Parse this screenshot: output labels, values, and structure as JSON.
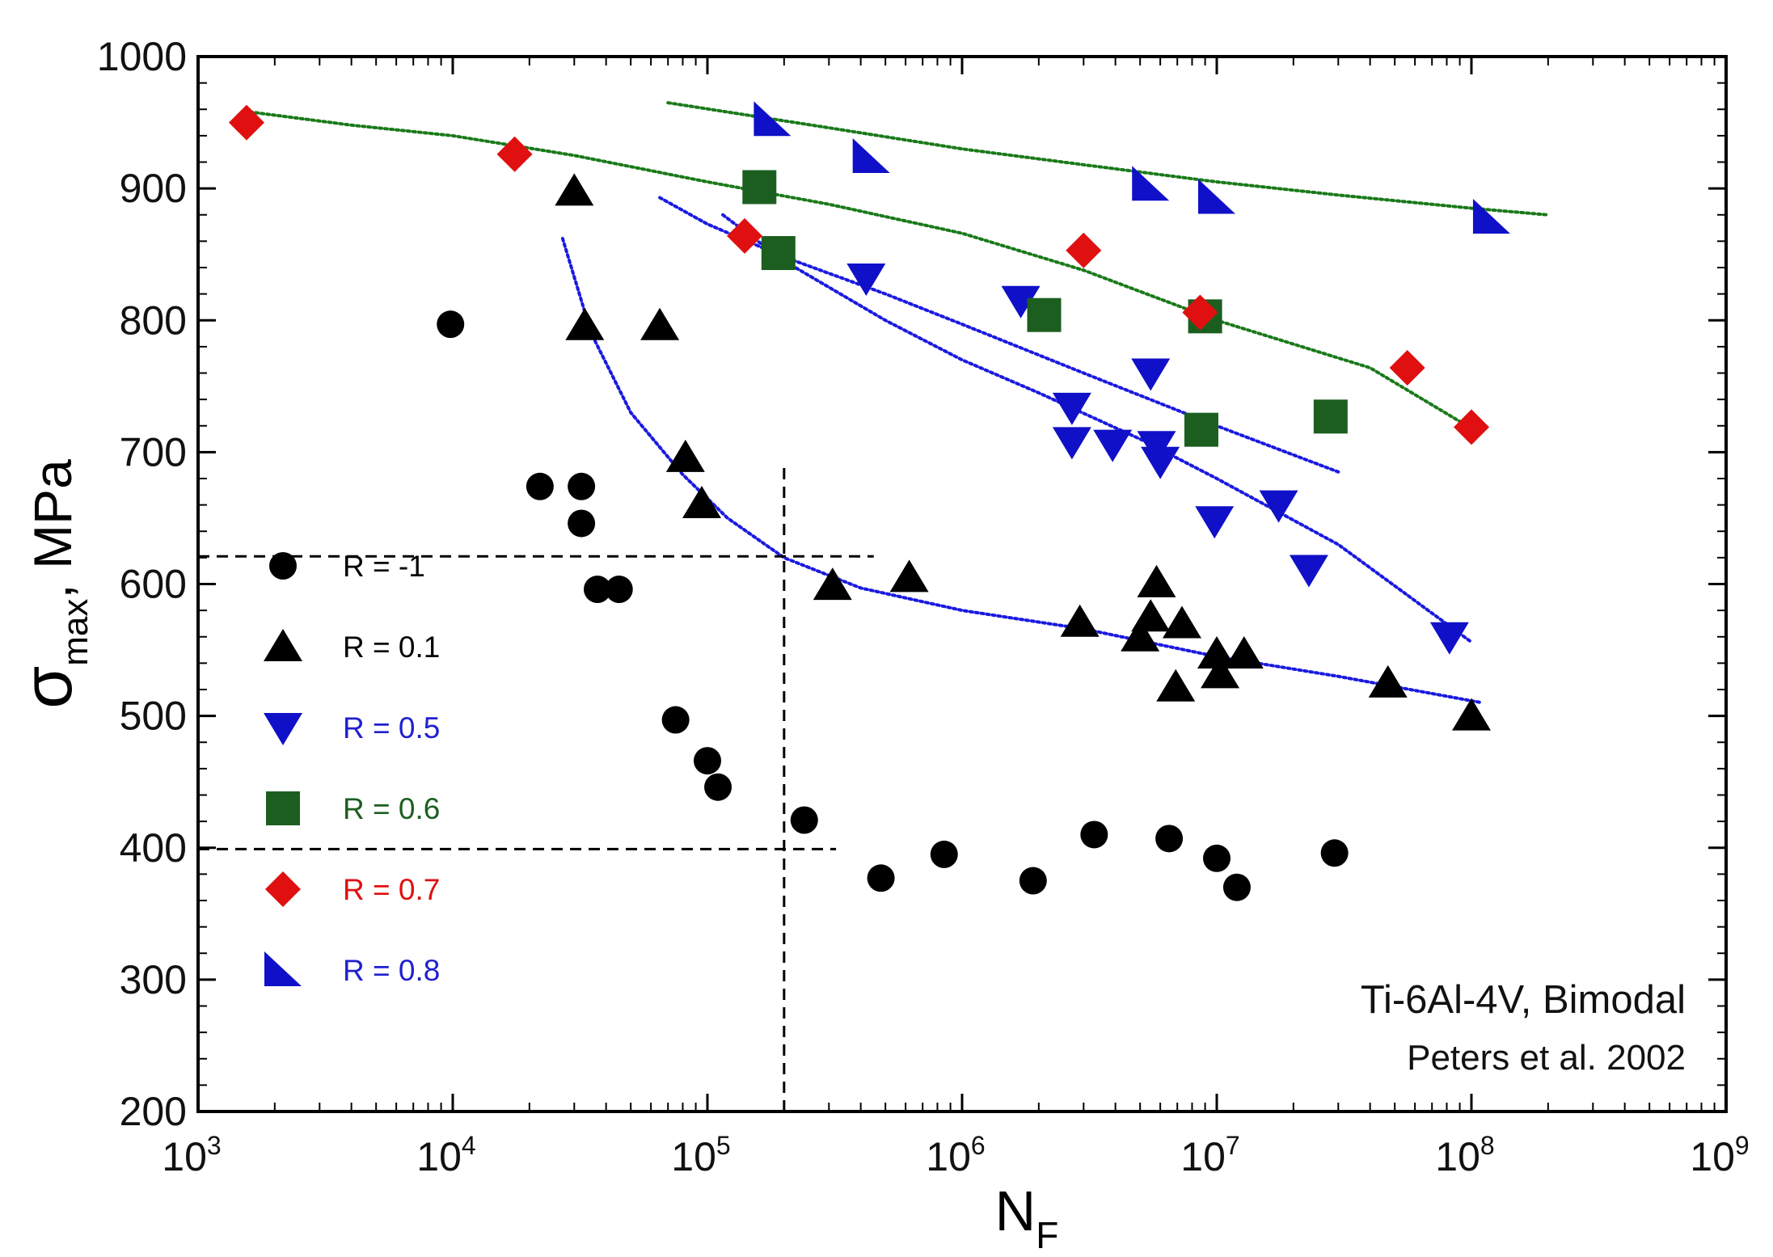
{
  "chart_data": {
    "type": "scatter",
    "x_scale": "log",
    "xlim": [
      1000,
      1000000000
    ],
    "ylim": [
      200,
      1000
    ],
    "xlabel": {
      "base": "N",
      "subscript": "F"
    },
    "ylabel": {
      "symbol": "σ",
      "subscript": "max",
      "suffix": ", MPa"
    },
    "x_ticks": [
      {
        "value": 1000,
        "base": "10",
        "exp": "3"
      },
      {
        "value": 10000,
        "base": "10",
        "exp": "4"
      },
      {
        "value": 100000,
        "base": "10",
        "exp": "5"
      },
      {
        "value": 1000000,
        "base": "10",
        "exp": "6"
      },
      {
        "value": 10000000,
        "base": "10",
        "exp": "7"
      },
      {
        "value": 100000000,
        "base": "10",
        "exp": "8"
      },
      {
        "value": 1000000000,
        "base": "10",
        "exp": "9"
      }
    ],
    "y_ticks": [
      {
        "value": 200,
        "label": "200"
      },
      {
        "value": 300,
        "label": "300"
      },
      {
        "value": 400,
        "label": "400"
      },
      {
        "value": 500,
        "label": "500"
      },
      {
        "value": 600,
        "label": "600"
      },
      {
        "value": 700,
        "label": "700"
      },
      {
        "value": 800,
        "label": "800"
      },
      {
        "value": 900,
        "label": "900"
      },
      {
        "value": 1000,
        "label": "1000"
      }
    ],
    "series": [
      {
        "name": "R = -1",
        "marker": "circle",
        "color": "#000000",
        "label_color": "#000000",
        "points": [
          [
            9800,
            797
          ],
          [
            22000,
            674
          ],
          [
            32000,
            674
          ],
          [
            32000,
            646
          ],
          [
            37000,
            596
          ],
          [
            45000,
            596
          ],
          [
            75000,
            497
          ],
          [
            100000,
            466
          ],
          [
            110000,
            446
          ],
          [
            240000,
            421
          ],
          [
            480000,
            377
          ],
          [
            850000,
            395
          ],
          [
            1900000,
            375
          ],
          [
            3300000,
            410
          ],
          [
            6500000,
            407
          ],
          [
            10000000,
            392
          ],
          [
            12000000,
            370
          ],
          [
            29000000,
            396
          ]
        ]
      },
      {
        "name": "R = 0.1",
        "marker": "triangle-up",
        "color": "#000000",
        "label_color": "#000000",
        "points": [
          [
            30000,
            898
          ],
          [
            33000,
            796
          ],
          [
            65000,
            796
          ],
          [
            82000,
            696
          ],
          [
            95000,
            661
          ],
          [
            310000,
            599
          ],
          [
            620000,
            605
          ],
          [
            2900000,
            571
          ],
          [
            5000000,
            560
          ],
          [
            5500000,
            575
          ],
          [
            5800000,
            601
          ],
          [
            7300000,
            570
          ],
          [
            6900000,
            522
          ],
          [
            10000000,
            547
          ],
          [
            10300000,
            532
          ],
          [
            12800000,
            547
          ],
          [
            47000000,
            525
          ],
          [
            100000000,
            500
          ]
        ]
      },
      {
        "name": "R = 0.5",
        "marker": "triangle-down",
        "color": "#1010c8",
        "label_color": "#2020d0",
        "points": [
          [
            420000,
            832
          ],
          [
            1700000,
            815
          ],
          [
            2700000,
            734
          ],
          [
            2700000,
            708
          ],
          [
            3900000,
            706
          ],
          [
            5500000,
            760
          ],
          [
            5800000,
            705
          ],
          [
            6000000,
            693
          ],
          [
            9800000,
            648
          ],
          [
            17500000,
            660
          ],
          [
            23000000,
            611
          ],
          [
            82000000,
            560
          ]
        ]
      },
      {
        "name": "R = 0.6",
        "marker": "square",
        "color": "#1c5e20",
        "label_color": "#1c5e20",
        "points": [
          [
            160000,
            901
          ],
          [
            190000,
            851
          ],
          [
            2100000,
            804
          ],
          [
            9000000,
            803
          ],
          [
            8700000,
            717
          ],
          [
            28000000,
            727
          ]
        ]
      },
      {
        "name": "R = 0.7",
        "marker": "diamond",
        "color": "#e01010",
        "label_color": "#e01010",
        "points": [
          [
            1550,
            950
          ],
          [
            17500,
            926
          ],
          [
            140000,
            864
          ],
          [
            3000000,
            853
          ],
          [
            8600000,
            806
          ],
          [
            56000000,
            764
          ],
          [
            100000000,
            719
          ]
        ]
      },
      {
        "name": "R = 0.8",
        "marker": "right-triangle",
        "color": "#1010c8",
        "label_color": "#2020d0",
        "points": [
          [
            180000,
            952
          ],
          [
            440000,
            924
          ],
          [
            5500000,
            903
          ],
          [
            10000000,
            893
          ],
          [
            120000000,
            878
          ]
        ]
      }
    ],
    "fit_lines": [
      {
        "color": "#1a7a1a",
        "points": [
          [
            1600,
            958
          ],
          [
            4000,
            948
          ],
          [
            10000,
            940
          ],
          [
            30000,
            925
          ],
          [
            100000,
            905
          ],
          [
            300000,
            888
          ],
          [
            1000000,
            866
          ],
          [
            3000000,
            838
          ],
          [
            10000000,
            800
          ],
          [
            40000000,
            764
          ],
          [
            100000000,
            718
          ]
        ]
      },
      {
        "color": "#1a7a1a",
        "points": [
          [
            70000,
            965
          ],
          [
            300000,
            946
          ],
          [
            1000000,
            930
          ],
          [
            3000000,
            918
          ],
          [
            10000000,
            905
          ],
          [
            30000000,
            895
          ],
          [
            100000000,
            885
          ],
          [
            200000000,
            880
          ]
        ]
      },
      {
        "color": "#1a1ae0",
        "points": [
          [
            65000,
            893
          ],
          [
            100000,
            873
          ],
          [
            200000,
            848
          ],
          [
            500000,
            820
          ],
          [
            1000000,
            797
          ],
          [
            3000000,
            760
          ],
          [
            10000000,
            720
          ],
          [
            30000000,
            685
          ]
        ]
      },
      {
        "color": "#1a1ae0",
        "points": [
          [
            115000,
            880
          ],
          [
            200000,
            845
          ],
          [
            500000,
            800
          ],
          [
            1000000,
            770
          ],
          [
            2000000,
            745
          ],
          [
            5000000,
            710
          ],
          [
            10000000,
            680
          ],
          [
            30000000,
            630
          ],
          [
            100000000,
            556
          ]
        ]
      },
      {
        "color": "#1a1ae0",
        "points": [
          [
            27000,
            862
          ],
          [
            35000,
            790
          ],
          [
            50000,
            730
          ],
          [
            80000,
            683
          ],
          [
            120000,
            650
          ],
          [
            200000,
            620
          ],
          [
            400000,
            597
          ],
          [
            1000000,
            580
          ],
          [
            3000000,
            566
          ],
          [
            10000000,
            545
          ],
          [
            30000000,
            530
          ],
          [
            110000000,
            510
          ]
        ]
      }
    ],
    "reference_lines": [
      {
        "type": "horizontal",
        "y": 621,
        "x_range": [
          1000,
          450000
        ]
      },
      {
        "type": "horizontal",
        "y": 399,
        "x_range": [
          1000,
          320000
        ]
      },
      {
        "type": "vertical",
        "x": 200000,
        "y_range": [
          200,
          690
        ]
      }
    ],
    "legend_position": "left",
    "annotations": [
      "Ti-6Al-4V, Bimodal",
      "Peters et al. 2002"
    ]
  }
}
